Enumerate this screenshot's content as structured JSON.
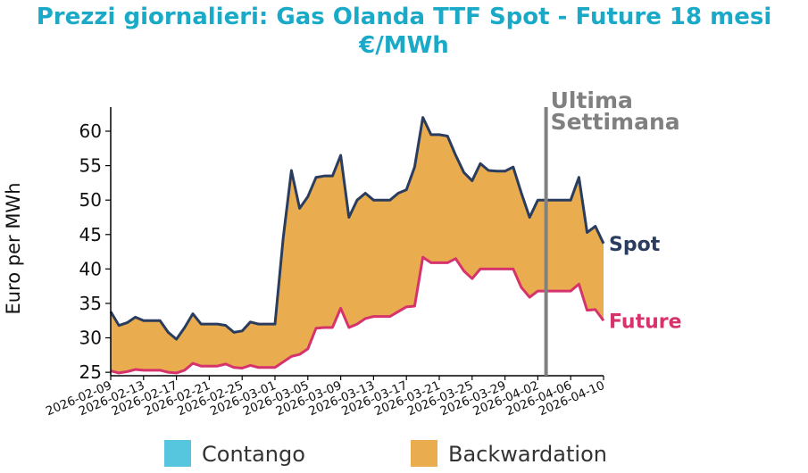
{
  "title_line1": "Prezzi giornalieri: Gas Olanda TTF Spot - Future 18 mesi",
  "title_line2": "€/MWh",
  "chart_data": {
    "type": "area",
    "title": "Prezzi giornalieri: Gas Olanda TTF Spot - Future 18 mesi €/MWh",
    "ylabel": "Euro per MWh",
    "xlabel": "",
    "ylim": [
      24.5,
      63.5
    ],
    "yticks": [
      25,
      30,
      35,
      40,
      45,
      50,
      55,
      60
    ],
    "xticks": [
      "2026-02-09",
      "2026-02-13",
      "2026-02-17",
      "2026-02-21",
      "2026-02-25",
      "2026-03-01",
      "2026-03-05",
      "2026-03-09",
      "2026-03-13",
      "2026-03-17",
      "2026-03-21",
      "2026-03-25",
      "2026-03-29",
      "2026-04-02",
      "2026-04-06",
      "2026-04-10"
    ],
    "x_start": "2026-02-09",
    "x_end": "2026-04-10",
    "series": [
      {
        "name": "Spot",
        "color": "#2b3d5e",
        "points": [
          [
            "2026-02-09",
            33.8
          ],
          [
            "2026-02-10",
            31.8
          ],
          [
            "2026-02-11",
            32.2
          ],
          [
            "2026-02-12",
            33.0
          ],
          [
            "2026-02-13",
            32.5
          ],
          [
            "2026-02-14",
            32.5
          ],
          [
            "2026-02-15",
            32.5
          ],
          [
            "2026-02-16",
            30.8
          ],
          [
            "2026-02-17",
            29.8
          ],
          [
            "2026-02-18",
            31.5
          ],
          [
            "2026-02-19",
            33.5
          ],
          [
            "2026-02-20",
            32.0
          ],
          [
            "2026-02-21",
            32.0
          ],
          [
            "2026-02-22",
            32.0
          ],
          [
            "2026-02-23",
            31.8
          ],
          [
            "2026-02-24",
            30.8
          ],
          [
            "2026-02-25",
            31.0
          ],
          [
            "2026-02-26",
            32.3
          ],
          [
            "2026-02-27",
            32.0
          ],
          [
            "2026-02-28",
            32.0
          ],
          [
            "2026-03-01",
            32.0
          ],
          [
            "2026-03-02",
            44.5
          ],
          [
            "2026-03-03",
            54.3
          ],
          [
            "2026-03-04",
            48.8
          ],
          [
            "2026-03-05",
            50.5
          ],
          [
            "2026-03-06",
            53.3
          ],
          [
            "2026-03-07",
            53.5
          ],
          [
            "2026-03-08",
            53.5
          ],
          [
            "2026-03-09",
            56.5
          ],
          [
            "2026-03-10",
            47.5
          ],
          [
            "2026-03-11",
            50.0
          ],
          [
            "2026-03-12",
            51.0
          ],
          [
            "2026-03-13",
            50.0
          ],
          [
            "2026-03-14",
            50.0
          ],
          [
            "2026-03-15",
            50.0
          ],
          [
            "2026-03-16",
            51.0
          ],
          [
            "2026-03-17",
            51.5
          ],
          [
            "2026-03-18",
            54.8
          ],
          [
            "2026-03-19",
            62.0
          ],
          [
            "2026-03-20",
            59.5
          ],
          [
            "2026-03-21",
            59.5
          ],
          [
            "2026-03-22",
            59.3
          ],
          [
            "2026-03-23",
            56.5
          ],
          [
            "2026-03-24",
            54.0
          ],
          [
            "2026-03-25",
            52.8
          ],
          [
            "2026-03-26",
            55.3
          ],
          [
            "2026-03-27",
            54.3
          ],
          [
            "2026-03-28",
            54.2
          ],
          [
            "2026-03-29",
            54.2
          ],
          [
            "2026-03-30",
            54.8
          ],
          [
            "2026-03-31",
            51.0
          ],
          [
            "2026-04-01",
            47.5
          ],
          [
            "2026-04-02",
            50.0
          ],
          [
            "2026-04-03",
            50.0
          ],
          [
            "2026-04-04",
            50.0
          ],
          [
            "2026-04-05",
            50.0
          ],
          [
            "2026-04-06",
            50.0
          ],
          [
            "2026-04-07",
            53.3
          ],
          [
            "2026-04-08",
            45.3
          ],
          [
            "2026-04-09",
            46.2
          ],
          [
            "2026-04-10",
            43.7
          ]
        ]
      },
      {
        "name": "Future",
        "color": "#d6336c",
        "points": [
          [
            "2026-02-09",
            25.2
          ],
          [
            "2026-02-10",
            24.9
          ],
          [
            "2026-02-11",
            25.1
          ],
          [
            "2026-02-12",
            25.4
          ],
          [
            "2026-02-13",
            25.3
          ],
          [
            "2026-02-14",
            25.3
          ],
          [
            "2026-02-15",
            25.3
          ],
          [
            "2026-02-16",
            25.0
          ],
          [
            "2026-02-17",
            24.9
          ],
          [
            "2026-02-18",
            25.3
          ],
          [
            "2026-02-19",
            26.3
          ],
          [
            "2026-02-20",
            25.9
          ],
          [
            "2026-02-21",
            25.9
          ],
          [
            "2026-02-22",
            25.9
          ],
          [
            "2026-02-23",
            26.2
          ],
          [
            "2026-02-24",
            25.7
          ],
          [
            "2026-02-25",
            25.6
          ],
          [
            "2026-02-26",
            26.0
          ],
          [
            "2026-02-27",
            25.7
          ],
          [
            "2026-02-28",
            25.7
          ],
          [
            "2026-03-01",
            25.7
          ],
          [
            "2026-03-02",
            26.5
          ],
          [
            "2026-03-03",
            27.3
          ],
          [
            "2026-03-04",
            27.6
          ],
          [
            "2026-03-05",
            28.4
          ],
          [
            "2026-03-06",
            31.4
          ],
          [
            "2026-03-07",
            31.5
          ],
          [
            "2026-03-08",
            31.5
          ],
          [
            "2026-03-09",
            34.3
          ],
          [
            "2026-03-10",
            31.5
          ],
          [
            "2026-03-11",
            32.0
          ],
          [
            "2026-03-12",
            32.8
          ],
          [
            "2026-03-13",
            33.1
          ],
          [
            "2026-03-14",
            33.1
          ],
          [
            "2026-03-15",
            33.1
          ],
          [
            "2026-03-16",
            33.8
          ],
          [
            "2026-03-17",
            34.5
          ],
          [
            "2026-03-18",
            34.6
          ],
          [
            "2026-03-19",
            41.7
          ],
          [
            "2026-03-20",
            40.9
          ],
          [
            "2026-03-21",
            40.9
          ],
          [
            "2026-03-22",
            40.9
          ],
          [
            "2026-03-23",
            41.5
          ],
          [
            "2026-03-24",
            39.7
          ],
          [
            "2026-03-25",
            38.6
          ],
          [
            "2026-03-26",
            40.0
          ],
          [
            "2026-03-27",
            40.0
          ],
          [
            "2026-03-28",
            40.0
          ],
          [
            "2026-03-29",
            40.0
          ],
          [
            "2026-03-30",
            40.0
          ],
          [
            "2026-03-31",
            37.3
          ],
          [
            "2026-04-01",
            35.9
          ],
          [
            "2026-04-02",
            36.8
          ],
          [
            "2026-04-03",
            36.8
          ],
          [
            "2026-04-04",
            36.8
          ],
          [
            "2026-04-05",
            36.8
          ],
          [
            "2026-04-06",
            36.8
          ],
          [
            "2026-04-07",
            37.8
          ],
          [
            "2026-04-08",
            34.0
          ],
          [
            "2026-04-09",
            34.1
          ],
          [
            "2026-04-10",
            32.5
          ]
        ]
      }
    ],
    "fill_between": {
      "color": "#e9ac4e",
      "label": "Backwardation"
    },
    "vline": {
      "x": "2026-04-03",
      "label": "Ultima Settimana",
      "color": "#808080"
    },
    "legend": {
      "placement": "bottom",
      "items": [
        {
          "label": "Contango",
          "color": "#56c6de"
        },
        {
          "label": "Backwardation",
          "color": "#e9ac4e"
        }
      ]
    },
    "grid": false
  }
}
